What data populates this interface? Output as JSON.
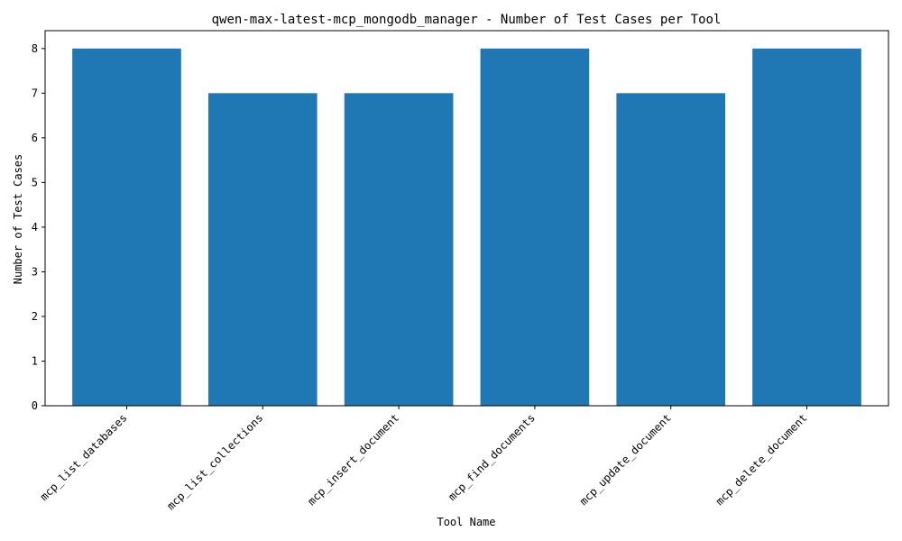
{
  "chart_data": {
    "type": "bar",
    "title": "qwen-max-latest-mcp_mongodb_manager - Number of Test Cases per Tool",
    "xlabel": "Tool Name",
    "ylabel": "Number of Test Cases",
    "categories": [
      "mcp_list_databases",
      "mcp_list_collections",
      "mcp_insert_document",
      "mcp_find_documents",
      "mcp_update_document",
      "mcp_delete_document"
    ],
    "values": [
      8,
      7,
      7,
      8,
      7,
      8
    ],
    "ylim": [
      0,
      8.4
    ],
    "yticks": [
      0,
      1,
      2,
      3,
      4,
      5,
      6,
      7,
      8
    ],
    "grid": false,
    "legend": "none",
    "bar_color": "#1f77b4"
  }
}
